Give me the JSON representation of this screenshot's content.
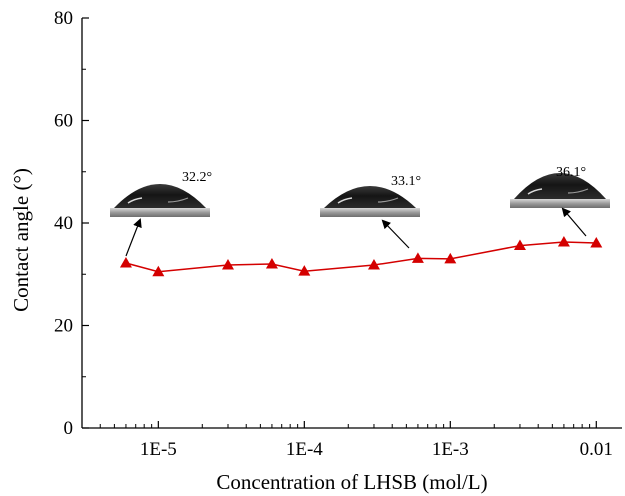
{
  "chart_data": {
    "type": "line",
    "xlabel": "Concentration of LHSB (mol/L)",
    "ylabel": "Contact angle (°)",
    "x_scale": "log",
    "xlim": [
      3e-06,
      0.015
    ],
    "ylim": [
      0,
      80
    ],
    "x_ticks": [
      {
        "value": 1e-05,
        "label": "1E-5"
      },
      {
        "value": 0.0001,
        "label": "1E-4"
      },
      {
        "value": 0.001,
        "label": "1E-3"
      },
      {
        "value": 0.01,
        "label": "0.01"
      }
    ],
    "y_ticks": [
      {
        "value": 0,
        "label": "0"
      },
      {
        "value": 20,
        "label": "20"
      },
      {
        "value": 40,
        "label": "40"
      },
      {
        "value": 60,
        "label": "60"
      },
      {
        "value": 80,
        "label": "80"
      }
    ],
    "grid": false,
    "series": [
      {
        "color": "#d40000",
        "marker": "triangle",
        "x": [
          6e-06,
          1e-05,
          3e-05,
          6e-05,
          0.0001,
          0.0003,
          0.0006,
          0.001,
          0.003,
          0.006,
          0.01
        ],
        "y": [
          32.2,
          30.5,
          31.8,
          32.0,
          30.6,
          31.8,
          33.1,
          33.0,
          35.6,
          36.3,
          36.1
        ]
      }
    ],
    "annotations": [
      {
        "text": "32.2°",
        "point_index": 0,
        "image": "water-droplet-photo"
      },
      {
        "text": "33.1°",
        "point_index": 6,
        "image": "water-droplet-photo"
      },
      {
        "text": "36.1°",
        "point_index": 10,
        "image": "water-droplet-photo"
      }
    ]
  }
}
